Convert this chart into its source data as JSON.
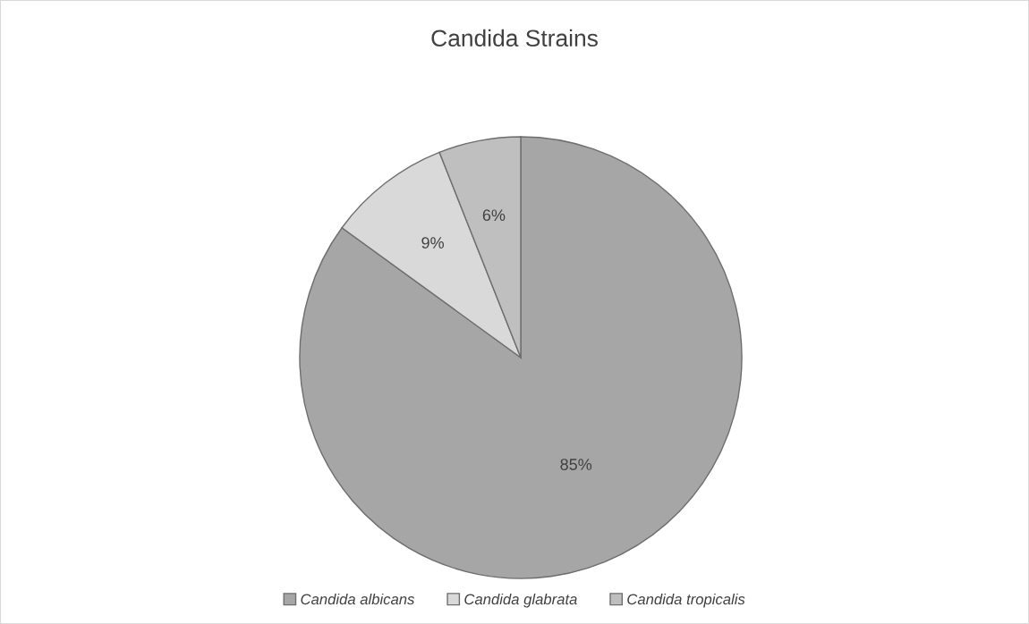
{
  "chart_data": {
    "type": "pie",
    "title": "Candida Strains",
    "categories": [
      "Candida albicans",
      "Candida glabrata",
      "Candida tropicalis"
    ],
    "values": [
      85,
      9,
      6
    ],
    "colors": [
      "#a6a6a6",
      "#d9d9d9",
      "#bfbfbf"
    ],
    "value_labels": [
      "85%",
      "9%",
      "6%"
    ],
    "legend": "bottom"
  }
}
